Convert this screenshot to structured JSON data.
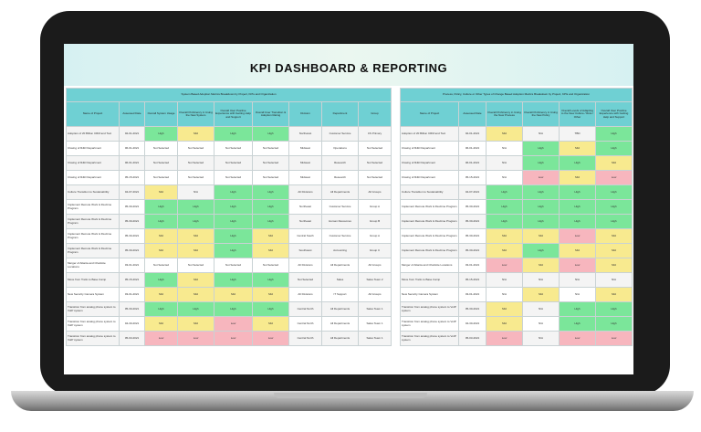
{
  "title": "KPI DASHBOARD & REPORTING",
  "colors": {
    "high": "#7be69a",
    "mid": "#f8ea8f",
    "low": "#f7b6be",
    "header": "#6fd0d3"
  },
  "left_table": {
    "super_header": "System Based Adoption Metrics\nBreakdown by Project, KPIs and Organization",
    "columns": [
      "Name of Project",
      "Assessed Date",
      "Overall System Usage",
      "Overall Proficiency in Using the New System",
      "Overall User Positive Experience with Getting Help and Support",
      "Overall User Transition & Adoption Rating",
      "Division",
      "Department",
      "Group"
    ],
    "rows": [
      [
        "Adoption of 20 Billion CRM and Tool",
        "02-01-2021",
        "High",
        "Mid",
        "High",
        "High",
        "Northwest",
        "Customer Service",
        "CS Primary"
      ],
      [
        "Closing of R&D Department",
        "06-01-2021",
        "Not Selected",
        "Not Selected",
        "Not Selected",
        "Not Selected",
        "Midwest",
        "Operations",
        "Not Selected"
      ],
      [
        "Closing of R&D Department",
        "06-01-2021",
        "Not Selected",
        "Not Selected",
        "Not Selected",
        "Not Selected",
        "Midwest",
        "Research",
        "Not Selected"
      ],
      [
        "Closing of R&D Department",
        "05-15-2021",
        "Not Selected",
        "Not Selected",
        "Not Selected",
        "Not Selected",
        "Midwest",
        "Research",
        "Not Selected"
      ],
      [
        "Culture Transition to Sustainability",
        "04-07-2021",
        "Mid",
        "N/A",
        "High",
        "High",
        "All Divisions",
        "All Departments",
        "All Groups"
      ],
      [
        "Implement Remote Work & Flextime Program",
        "05-30-2021",
        "High",
        "High",
        "High",
        "High",
        "Northeast",
        "Customer Service",
        "Group A"
      ],
      [
        "Implement Remote Work & Flextime Program",
        "05-30-2021",
        "High",
        "High",
        "High",
        "High",
        "Northeast",
        "Human Resources",
        "Group B"
      ],
      [
        "Implement Remote Work & Flextime Program",
        "05-30-2021",
        "Mid",
        "Mid",
        "High",
        "Mid",
        "Central South",
        "Customer Service",
        "Group A"
      ],
      [
        "Implement Remote Work & Flextime Program",
        "05-30-2021",
        "Mid",
        "Mid",
        "High",
        "Mid",
        "Southwest",
        "Accounting",
        "Group C"
      ],
      [
        "Merger of Atlanta and Charlotte Locations",
        "03-01-2021",
        "Not Selected",
        "Not Selected",
        "Not Selected",
        "Not Selected",
        "All Divisions",
        "All Departments",
        "All Groups"
      ],
      [
        "Move from Trello to Base Camp",
        "05-15-2021",
        "High",
        "Mid",
        "High",
        "High",
        "Not Selected",
        "Sales",
        "Sales Team 2"
      ],
      [
        "New Security Camera System",
        "03-01-2021",
        "Mid",
        "Mid",
        "Mid",
        "Mid",
        "All Divisions",
        "IT Support",
        "All Groups"
      ],
      [
        "Transition from analog phone system to VoIP system",
        "05-30-2021",
        "High",
        "High",
        "High",
        "High",
        "Central North",
        "All Departments",
        "Sales Team 1"
      ],
      [
        "Transition from analog phone system to VoIP system",
        "04-30-2021",
        "Mid",
        "Mid",
        "Low",
        "Mid",
        "Central North",
        "All Departments",
        "Sales Team 1"
      ],
      [
        "Transition from analog phone system to VoIP system",
        "05-03-2021",
        "Low",
        "Low",
        "Low",
        "Low",
        "Central North",
        "All Departments",
        "Sales Team 1"
      ]
    ]
  },
  "right_table": {
    "super_header": "Process, Policy, Culture or Other Types of Change Based Adoption Metrics\nBreakdown by Project, KPIs and Organization",
    "columns": [
      "Name of Project",
      "Assessed Date",
      "Overall Proficiency in Using the New Process",
      "Overall Proficiency in Using the New Policy",
      "Overall Levels of Adapting to the New Culture / Role / Other",
      "Overall User Positive Experience with Getting Help and Support"
    ],
    "rows": [
      [
        "Adoption of 20 Billion CRM and Tool",
        "02-01-2021",
        "Mid",
        "N/A",
        "TBD",
        "High"
      ],
      [
        "Closing of R&D Department",
        "06-01-2021",
        "N/A",
        "High",
        "Mid",
        "High"
      ],
      [
        "Closing of R&D Department",
        "06-01-2021",
        "N/A",
        "High",
        "High",
        "Mid"
      ],
      [
        "Closing of R&D Department",
        "05-15-2021",
        "N/A",
        "Low",
        "Mid",
        "Low"
      ],
      [
        "Culture Transition to Sustainability",
        "04-07-2021",
        "High",
        "High",
        "High",
        "High"
      ],
      [
        "Implement Remote Work & Flextime Program",
        "05-30-2021",
        "High",
        "High",
        "High",
        "High"
      ],
      [
        "Implement Remote Work & Flextime Program",
        "05-30-2021",
        "High",
        "High",
        "High",
        "High"
      ],
      [
        "Implement Remote Work & Flextime Program",
        "05-30-2021",
        "Mid",
        "Mid",
        "Low",
        "Mid"
      ],
      [
        "Implement Remote Work & Flextime Program",
        "05-30-2021",
        "Mid",
        "High",
        "Mid",
        "Mid"
      ],
      [
        "Merger of Atlanta and Charlotte Locations",
        "03-01-2021",
        "Low",
        "Mid",
        "Low",
        "Mid"
      ],
      [
        "Move from Trello to Base Camp",
        "05-15-2021",
        "N/A",
        "N/A",
        "N/A",
        "N/A"
      ],
      [
        "New Security Camera System",
        "03-01-2021",
        "N/A",
        "Mid",
        "N/A",
        "Mid"
      ],
      [
        "Transition from analog phone system to VoIP system",
        "05-30-2021",
        "Mid",
        "N/A",
        "High",
        "High"
      ],
      [
        "Transition from analog phone system to VoIP system",
        "04-30-2021",
        "Mid",
        "N/A",
        "High",
        "High"
      ],
      [
        "Transition from analog phone system to VoIP system",
        "05-03-2021",
        "Low",
        "N/A",
        "Low",
        "Low"
      ]
    ]
  }
}
